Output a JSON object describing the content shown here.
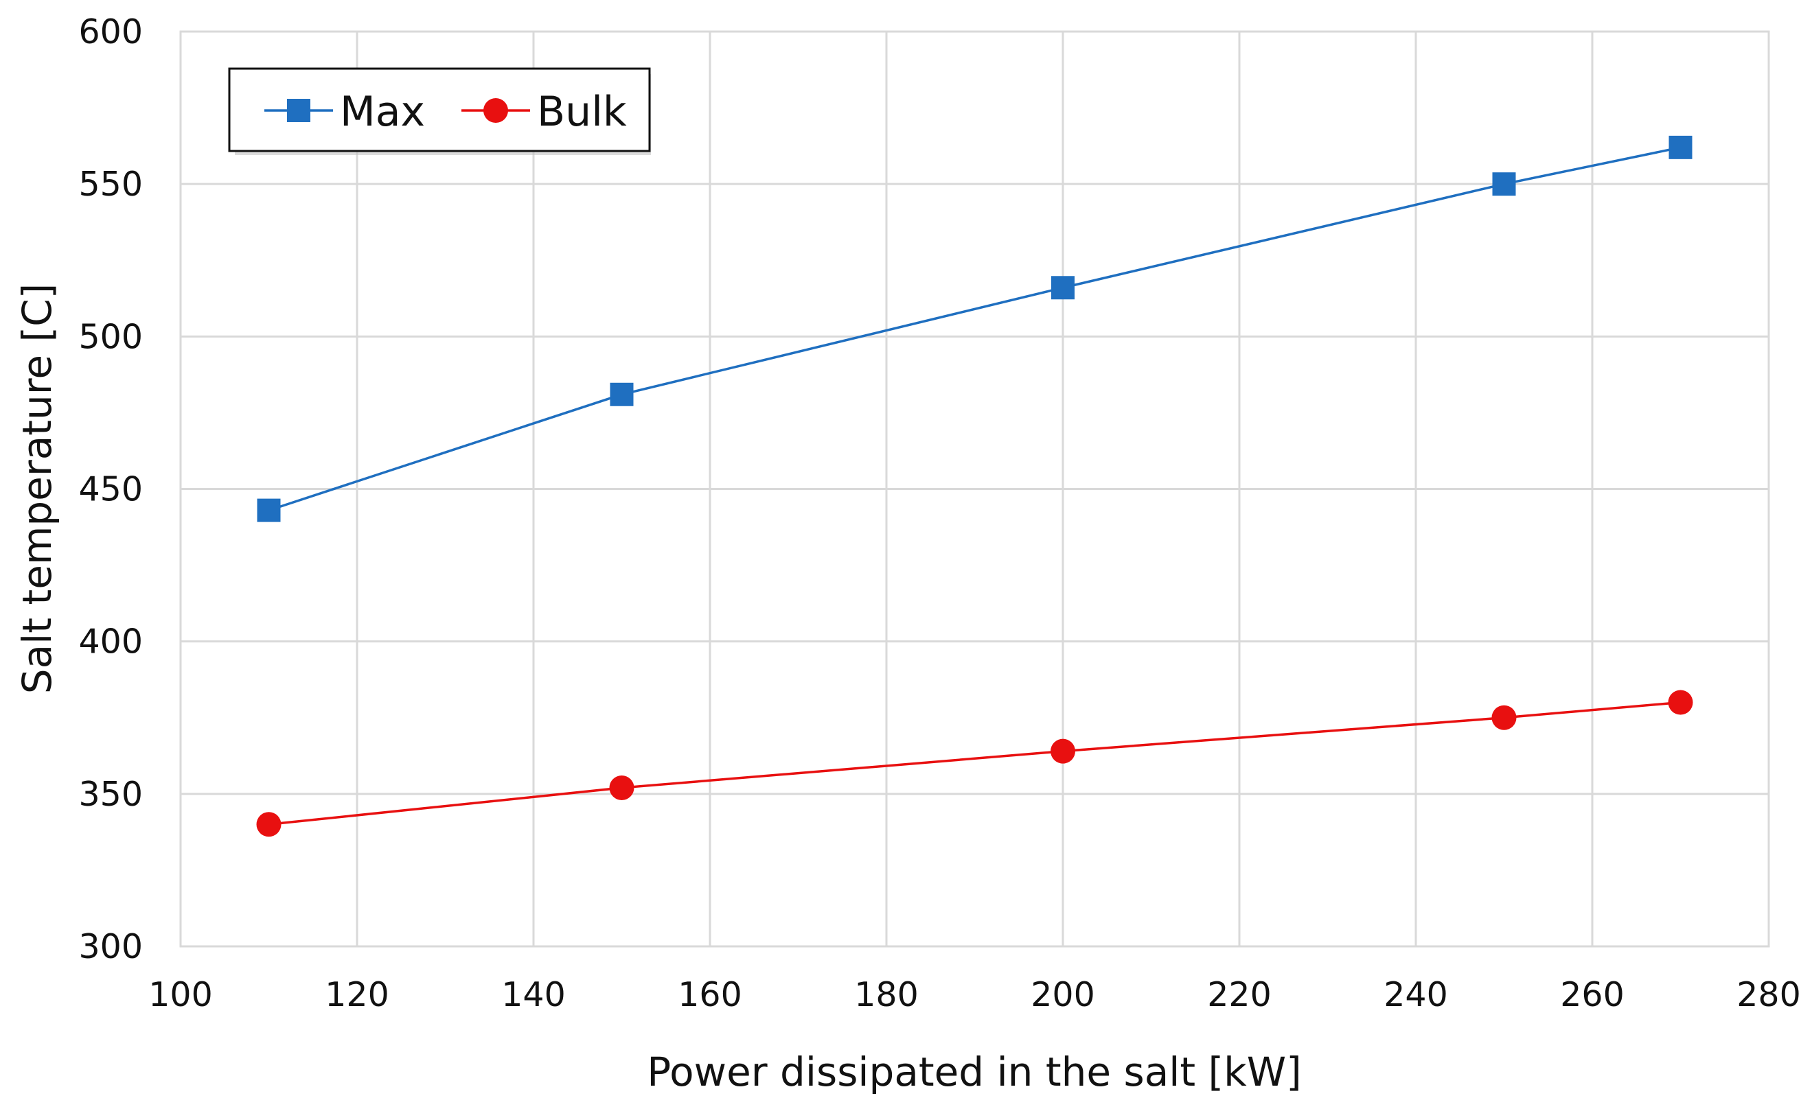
{
  "chart_data": {
    "type": "line",
    "title": "",
    "xlabel": "Power dissipated in the salt [kW]",
    "ylabel": "Salt temperature [C]",
    "xlim": [
      100,
      280
    ],
    "ylim": [
      300,
      600
    ],
    "xticks": [
      100,
      120,
      140,
      160,
      180,
      200,
      220,
      240,
      260,
      280
    ],
    "yticks": [
      300,
      350,
      400,
      450,
      500,
      550,
      600
    ],
    "grid": true,
    "legend_position": "top-left",
    "x": [
      110,
      150,
      200,
      250,
      270
    ],
    "series": [
      {
        "name": "Max",
        "values": [
          443,
          481,
          516,
          550,
          562
        ],
        "color": "#1f6fc0",
        "marker": "square"
      },
      {
        "name": "Bulk",
        "values": [
          340,
          352,
          364,
          375,
          380
        ],
        "color": "#e81010",
        "marker": "circle"
      }
    ]
  }
}
